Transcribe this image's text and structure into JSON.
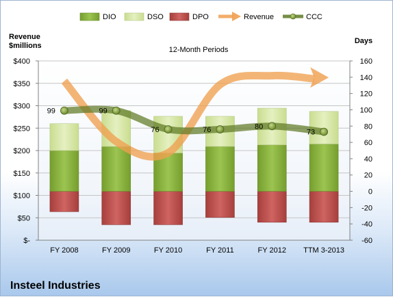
{
  "company_name": "Insteel Industries",
  "chart_data": {
    "type": "bar",
    "title": "12-Month Periods",
    "categories": [
      "FY 2008",
      "FY 2009",
      "FY 2010",
      "FY 2011",
      "FY 2012",
      "TTM 3-2013"
    ],
    "left_axis": {
      "label_line1": "Revenue",
      "label_line2": "$millions",
      "ylim": [
        0,
        400
      ],
      "ticks": [
        0,
        50,
        100,
        150,
        200,
        250,
        300,
        350,
        400
      ],
      "tick_labels": [
        "$-",
        "$50",
        "$100",
        "$150",
        "$200",
        "$250",
        "$300",
        "$350",
        "$400"
      ]
    },
    "right_axis": {
      "label": "Days",
      "ylim": [
        -60,
        160
      ],
      "ticks": [
        -60,
        -40,
        -20,
        0,
        20,
        40,
        60,
        80,
        100,
        120,
        140,
        160
      ],
      "tick_labels": [
        "-60",
        "-40",
        "-20",
        "0",
        "20",
        "40",
        "60",
        "80",
        "100",
        "120",
        "140",
        "160"
      ]
    },
    "series": [
      {
        "name": "DIO",
        "kind": "bar-stacked-up",
        "axis": "right",
        "color": "#8ab43c",
        "values": [
          50,
          55,
          47,
          55,
          57,
          58
        ]
      },
      {
        "name": "DSO",
        "kind": "bar-stacked-up",
        "axis": "right",
        "color": "#d7e8a8",
        "values": [
          33,
          44,
          45,
          37,
          45,
          40
        ]
      },
      {
        "name": "DPO",
        "kind": "bar-down",
        "axis": "right",
        "color": "#c0504d",
        "values": [
          -25,
          -41,
          -41,
          -32,
          -38,
          -38
        ]
      },
      {
        "name": "Revenue",
        "kind": "trend-arrow",
        "axis": "left",
        "color": "#f0a050",
        "values": [
          355,
          220,
          195,
          347,
          367,
          363
        ]
      },
      {
        "name": "CCC",
        "kind": "line",
        "axis": "right",
        "color": "#5f7a25",
        "values": [
          99,
          99,
          76,
          76,
          80,
          73
        ]
      }
    ],
    "data_labels": [
      "99",
      "99",
      "76",
      "76",
      "80",
      "73"
    ],
    "legend": {
      "position": "top",
      "entries": [
        "DIO",
        "DSO",
        "DPO",
        "Revenue",
        "CCC"
      ]
    }
  }
}
